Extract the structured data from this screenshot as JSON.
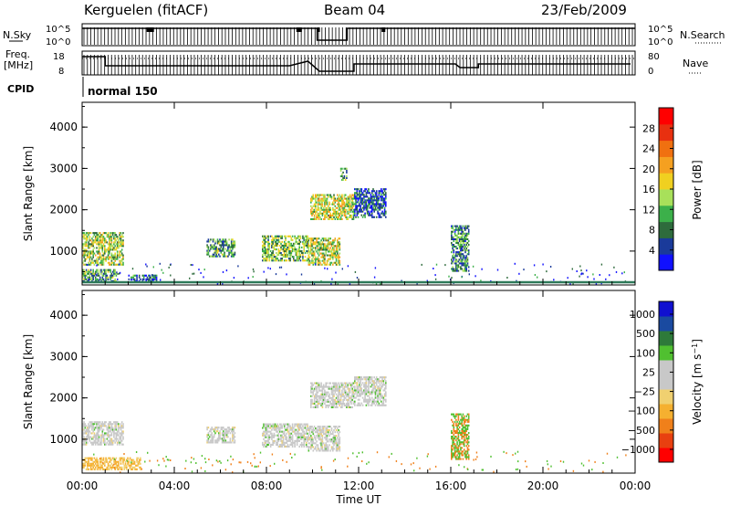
{
  "header": {
    "station": "Kerguelen (fitACF)",
    "beam": "Beam 04",
    "date": "23/Feb/2009"
  },
  "status_strips": {
    "nsky_label": "N.Sky",
    "nsky_ticks": [
      "10^5",
      "10^0"
    ],
    "freq_label_line1": "Freq.",
    "freq_label_line2": "[MHz]",
    "freq_ticks": [
      "18",
      "8"
    ],
    "nsearch_label": "N.Search",
    "nsearch_ticks": [
      "10^5",
      "10^0"
    ],
    "nave_label": "Nave",
    "nave_ticks": [
      "80",
      "0"
    ],
    "cpid_label": "CPID",
    "cpid_value": "normal 150"
  },
  "colors": {
    "power_scale": [
      "#1010ff",
      "#1a3a9a",
      "#2e6b3c",
      "#3cb04a",
      "#a8e05a",
      "#f0d020",
      "#f5a020",
      "#f07010",
      "#e83010",
      "#ff0000"
    ],
    "velocity_scale": [
      "#ff0000",
      "#e84010",
      "#f0801a",
      "#f5b030",
      "#f0d070",
      "#c8c8c8",
      "#c8c8c8",
      "#50c030",
      "#2e7a3a",
      "#1a4aa0",
      "#1010d0"
    ],
    "ground_line": "#2e7a5a"
  },
  "chart_data": [
    {
      "type": "heatmap",
      "name": "power",
      "xlabel": "",
      "ylabel": "Slant Range [km]",
      "xlim": [
        0,
        24
      ],
      "ylim": [
        180,
        4600
      ],
      "yticks": [
        "1000",
        "2000",
        "3000",
        "4000"
      ],
      "colorbar_label": "Power [dB]",
      "colorbar_ticks": [
        "4",
        "8",
        "12",
        "16",
        "20",
        "24",
        "28"
      ],
      "colorbar_range": [
        0,
        32
      ],
      "regions": [
        {
          "t": [
            0.0,
            1.8
          ],
          "r": [
            650,
            1450
          ],
          "level": 14
        },
        {
          "t": [
            0.0,
            1.5
          ],
          "r": [
            250,
            550
          ],
          "level": 10
        },
        {
          "t": [
            2.0,
            3.2
          ],
          "r": [
            250,
            400
          ],
          "level": 6
        },
        {
          "t": [
            5.4,
            6.6
          ],
          "r": [
            850,
            1300
          ],
          "level": 10
        },
        {
          "t": [
            7.8,
            9.8
          ],
          "r": [
            750,
            1350
          ],
          "level": 12
        },
        {
          "t": [
            9.8,
            11.2
          ],
          "r": [
            650,
            1300
          ],
          "level": 15
        },
        {
          "t": [
            9.9,
            11.8
          ],
          "r": [
            1750,
            2350
          ],
          "level": 16
        },
        {
          "t": [
            11.8,
            13.2
          ],
          "r": [
            1800,
            2500
          ],
          "level": 5
        },
        {
          "t": [
            16.0,
            16.8
          ],
          "r": [
            500,
            1600
          ],
          "level": 9
        },
        {
          "t": [
            11.2,
            11.5
          ],
          "r": [
            2700,
            3000
          ],
          "level": 10
        }
      ]
    },
    {
      "type": "heatmap",
      "name": "velocity",
      "xlabel": "Time UT",
      "ylabel": "Slant Range [km]",
      "xlim": [
        0,
        24
      ],
      "ylim": [
        180,
        4600
      ],
      "xticks": [
        "00:00",
        "04:00",
        "08:00",
        "12:00",
        "16:00",
        "20:00",
        "00:00"
      ],
      "yticks": [
        "1000",
        "2000",
        "3000",
        "4000"
      ],
      "colorbar_label": "Velocity [m s^-1]",
      "colorbar_ticks": [
        "1000",
        "500",
        "100",
        "25",
        "-25",
        "-100",
        "-500",
        "-1000"
      ],
      "regions": [
        {
          "t": [
            0.0,
            1.8
          ],
          "r": [
            850,
            1400
          ],
          "level": 0
        },
        {
          "t": [
            0.0,
            2.5
          ],
          "r": [
            250,
            550
          ],
          "level": -60
        },
        {
          "t": [
            5.4,
            6.6
          ],
          "r": [
            900,
            1300
          ],
          "level": 0
        },
        {
          "t": [
            7.8,
            9.8
          ],
          "r": [
            800,
            1350
          ],
          "level": 0
        },
        {
          "t": [
            9.8,
            11.2
          ],
          "r": [
            700,
            1300
          ],
          "level": 0
        },
        {
          "t": [
            9.9,
            11.8
          ],
          "r": [
            1750,
            2350
          ],
          "level": 0
        },
        {
          "t": [
            11.8,
            13.2
          ],
          "r": [
            1800,
            2500
          ],
          "level": 0
        },
        {
          "t": [
            16.0,
            16.8
          ],
          "r": [
            500,
            1600
          ],
          "level": 80
        }
      ]
    }
  ]
}
